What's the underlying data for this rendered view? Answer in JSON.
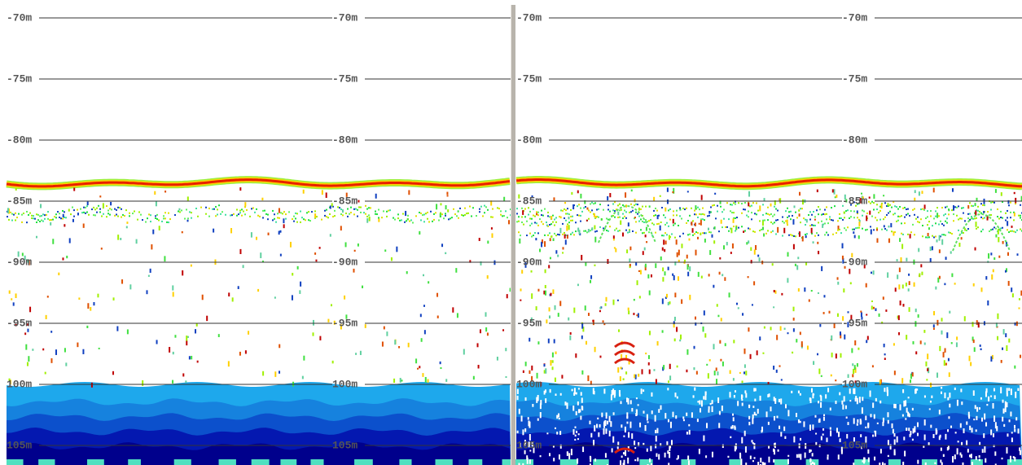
{
  "panels": [
    {
      "depth_labels": [
        "-70m",
        "-75m",
        "-80m",
        "-85m",
        "-90m",
        "-95m",
        "100m",
        "105m"
      ]
    },
    {
      "depth_labels": [
        "-70m",
        "-75m",
        "-80m",
        "-85m",
        "-90m",
        "-95m",
        "100m",
        "105m"
      ]
    }
  ]
}
